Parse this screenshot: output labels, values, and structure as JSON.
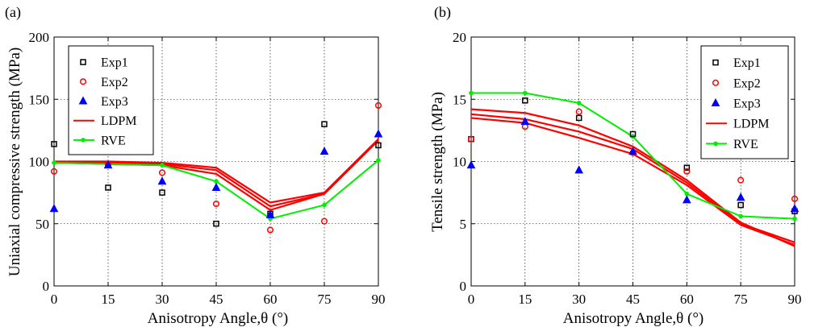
{
  "colors": {
    "exp1": "#000000",
    "exp2": "#ff0000",
    "exp3": "#0000ff",
    "ldpm": "#ff0000",
    "rve": "#00ee00"
  },
  "chart_data": [
    {
      "panel": "(a)",
      "type": "scatter",
      "xlabel": "Anisotropy Angle,θ (°)",
      "ylabel": "Uniaxial compressive strength (MPa)",
      "xlim": [
        0,
        90
      ],
      "ylim": [
        0,
        200
      ],
      "xticks": [
        0,
        15,
        30,
        45,
        60,
        75,
        90
      ],
      "yticks": [
        0,
        50,
        100,
        150,
        200
      ],
      "grid": true,
      "legend_position": "top-left",
      "series": [
        {
          "name": "Exp1",
          "kind": "marker",
          "marker": "square",
          "x": [
            0,
            15,
            30,
            45,
            60,
            75,
            90
          ],
          "y": [
            114,
            79,
            75,
            50,
            58,
            130,
            113
          ]
        },
        {
          "name": "Exp2",
          "kind": "marker",
          "marker": "circle",
          "x": [
            0,
            15,
            30,
            45,
            60,
            75,
            90
          ],
          "y": [
            92,
            97,
            91,
            66,
            45,
            52,
            145
          ]
        },
        {
          "name": "Exp3",
          "kind": "marker",
          "marker": "triangle",
          "x": [
            0,
            15,
            30,
            45,
            60,
            75,
            90
          ],
          "y": [
            62,
            97,
            84,
            79,
            57,
            108,
            122
          ]
        },
        {
          "name": "LDPM",
          "kind": "line",
          "x": [
            0,
            15,
            30,
            45,
            60,
            75,
            90
          ],
          "y": [
            100,
            100,
            99,
            95,
            67,
            75,
            118
          ]
        },
        {
          "name": "",
          "kind": "line",
          "legend": false,
          "x": [
            0,
            15,
            30,
            45,
            60,
            75,
            90
          ],
          "y": [
            99,
            99,
            98,
            93,
            64,
            74,
            117
          ]
        },
        {
          "name": "",
          "kind": "line",
          "legend": false,
          "x": [
            0,
            15,
            30,
            45,
            60,
            75,
            90
          ],
          "y": [
            99,
            98,
            97,
            90,
            61,
            74,
            117
          ]
        },
        {
          "name": "RVE",
          "kind": "line",
          "markers": true,
          "x": [
            0,
            15,
            30,
            45,
            60,
            75,
            90
          ],
          "y": [
            99,
            98,
            97,
            84,
            54,
            65,
            101
          ]
        }
      ]
    },
    {
      "panel": "(b)",
      "type": "scatter",
      "xlabel": "Anisotropy Angle,θ (°)",
      "ylabel": "Tensile strength (MPa)",
      "xlim": [
        0,
        90
      ],
      "ylim": [
        0,
        20
      ],
      "xticks": [
        0,
        15,
        30,
        45,
        60,
        75,
        90
      ],
      "yticks": [
        0,
        5,
        10,
        15,
        20
      ],
      "grid": true,
      "legend_position": "top-right",
      "series": [
        {
          "name": "Exp1",
          "kind": "marker",
          "marker": "square",
          "x": [
            0,
            15,
            30,
            45,
            60,
            75,
            90
          ],
          "y": [
            11.8,
            14.9,
            13.5,
            12.2,
            9.5,
            6.5,
            6.0
          ]
        },
        {
          "name": "Exp2",
          "kind": "marker",
          "marker": "circle",
          "x": [
            0,
            15,
            30,
            45,
            60,
            75,
            90
          ],
          "y": [
            11.8,
            12.8,
            14.0,
            10.7,
            9.2,
            8.5,
            7.0
          ]
        },
        {
          "name": "Exp3",
          "kind": "marker",
          "marker": "triangle",
          "x": [
            0,
            15,
            30,
            45,
            60,
            75,
            90
          ],
          "y": [
            9.7,
            13.2,
            9.3,
            10.8,
            6.9,
            7.1,
            6.2
          ]
        },
        {
          "name": "LDPM",
          "kind": "line",
          "x": [
            0,
            15,
            30,
            45,
            60,
            75,
            90
          ],
          "y": [
            14.2,
            13.9,
            12.9,
            11.2,
            8.5,
            5.1,
            3.2
          ]
        },
        {
          "name": "",
          "kind": "line",
          "legend": false,
          "x": [
            0,
            15,
            30,
            45,
            60,
            75,
            90
          ],
          "y": [
            13.8,
            13.4,
            12.4,
            11.0,
            8.3,
            5.0,
            3.5
          ]
        },
        {
          "name": "",
          "kind": "line",
          "legend": false,
          "x": [
            0,
            15,
            30,
            45,
            60,
            75,
            90
          ],
          "y": [
            13.5,
            13.1,
            11.9,
            10.6,
            8.1,
            4.9,
            3.3
          ]
        },
        {
          "name": "RVE",
          "kind": "line",
          "markers": true,
          "x": [
            0,
            15,
            30,
            45,
            60,
            75,
            90
          ],
          "y": [
            15.5,
            15.5,
            14.7,
            12.0,
            7.4,
            5.6,
            5.4
          ]
        }
      ]
    }
  ]
}
